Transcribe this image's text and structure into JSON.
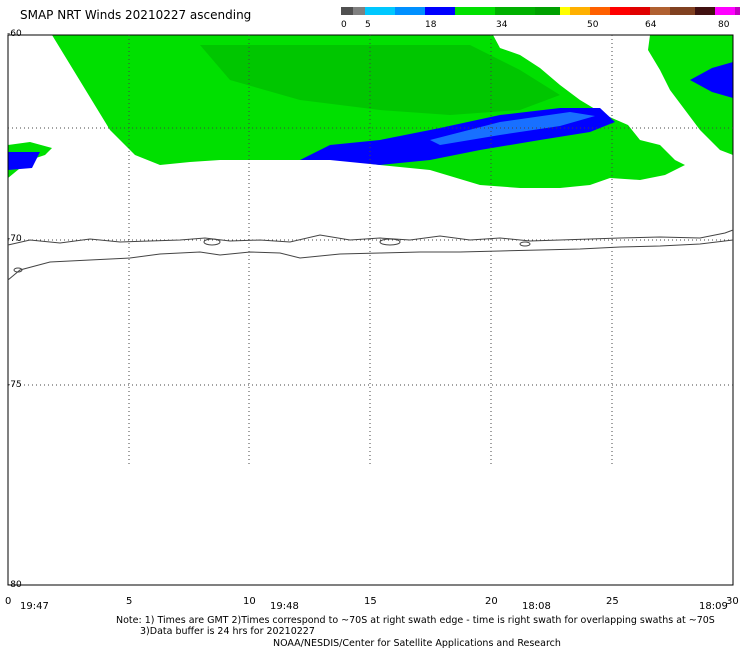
{
  "title": "SMAP NRT Winds 20210227 ascending",
  "legend": {
    "labels": [
      "0",
      "5",
      "18",
      "34",
      "50",
      "64",
      "80"
    ],
    "colors": [
      "#505050",
      "#808080",
      "#00c8ff",
      "#0090ff",
      "#0000ff",
      "#00e000",
      "#00b000",
      "#00a000",
      "#ffff00",
      "#ffb000",
      "#ff6000",
      "#ff0000",
      "#e00000",
      "#b06030",
      "#804020",
      "#401010",
      "#ff00ff",
      "#c000c0",
      "#8000a0"
    ]
  },
  "lat_labels": [
    "-60",
    "-70",
    "-75",
    "-80"
  ],
  "lon_labels": [
    "0",
    "5",
    "10",
    "15",
    "20",
    "25",
    "30"
  ],
  "time_labels": [
    "19:47",
    "19:48",
    "18:08",
    "18:09"
  ],
  "notes": [
    "Note: 1) Times are GMT 2)Times correspond to ~70S at right swath edge - time is right swath for overlapping swaths at ~70S",
    "3)Data buffer is 24 hrs for 20210227",
    "NOAA/NESDIS/Center for Satellite Applications and Research"
  ],
  "map": {
    "extent": {
      "lon": [
        0,
        30
      ],
      "lat": [
        -60,
        -80
      ]
    },
    "colors": {
      "green": "#00e000",
      "dark_green": "#00b000",
      "blue": "#0000ff",
      "light_blue": "#1870ff",
      "coast": "#444444"
    }
  }
}
